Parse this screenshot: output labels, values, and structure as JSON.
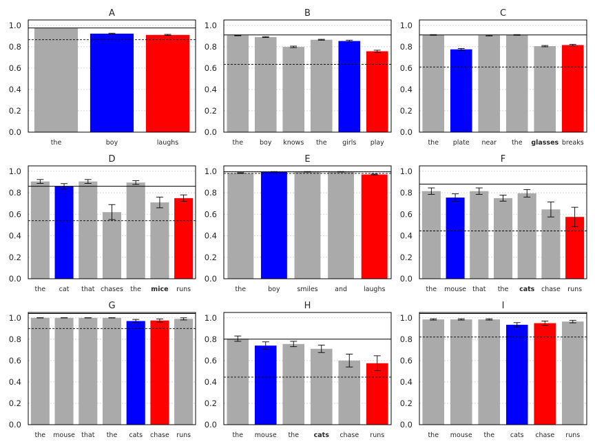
{
  "figure": {
    "background": "#ffffff"
  },
  "style": {
    "gray": "#aaaaaa",
    "blue": "#0000ff",
    "red": "#ff0000",
    "ref_line": "#000000"
  },
  "chart_data": [
    {
      "panel": "A",
      "type": "bar",
      "title": "A",
      "categories": [
        "the",
        "boy",
        "laughs"
      ],
      "bold": [],
      "values": [
        0.975,
        0.922,
        0.91
      ],
      "errors": [
        0,
        0.004,
        0.005
      ],
      "colors": [
        "gray",
        "blue",
        "red"
      ],
      "solid_line": 0.975,
      "dashed_line": 0.865,
      "ylim": [
        0,
        1.05
      ],
      "yticks": [
        "0.0",
        "0.2",
        "0.4",
        "0.6",
        "0.8",
        "1.0"
      ],
      "grid": true
    },
    {
      "panel": "B",
      "type": "bar",
      "title": "B",
      "categories": [
        "the",
        "boy",
        "knows",
        "the",
        "girls",
        "play"
      ],
      "bold": [],
      "values": [
        0.905,
        0.89,
        0.798,
        0.865,
        0.853,
        0.757
      ],
      "errors": [
        0.003,
        0.004,
        0.007,
        0.004,
        0.008,
        0.01
      ],
      "colors": [
        "gray",
        "gray",
        "gray",
        "gray",
        "blue",
        "red"
      ],
      "solid_line": 0.91,
      "dashed_line": 0.635,
      "ylim": [
        0,
        1.05
      ],
      "yticks": [
        "0.0",
        "0.2",
        "0.4",
        "0.6",
        "0.8",
        "1.0"
      ],
      "grid": true
    },
    {
      "panel": "C",
      "type": "bar",
      "title": "C",
      "categories": [
        "the",
        "plate",
        "near",
        "the",
        "glasses",
        "breaks"
      ],
      "bold": [
        "glasses"
      ],
      "values": [
        0.91,
        0.775,
        0.905,
        0.91,
        0.805,
        0.815
      ],
      "errors": [
        0.003,
        0.008,
        0.004,
        0.003,
        0.006,
        0.007
      ],
      "colors": [
        "gray",
        "blue",
        "gray",
        "gray",
        "gray",
        "red"
      ],
      "solid_line": 0.91,
      "dashed_line": 0.61,
      "ylim": [
        0,
        1.05
      ],
      "yticks": [
        "0.0",
        "0.2",
        "0.4",
        "0.6",
        "0.8",
        "1.0"
      ],
      "grid": true
    },
    {
      "panel": "D",
      "type": "bar",
      "title": "D",
      "categories": [
        "the",
        "cat",
        "that",
        "chases",
        "the",
        "mice",
        "runs"
      ],
      "bold": [
        "mice"
      ],
      "values": [
        0.905,
        0.86,
        0.905,
        0.62,
        0.895,
        0.71,
        0.75
      ],
      "errors": [
        0.018,
        0.025,
        0.018,
        0.07,
        0.018,
        0.05,
        0.03
      ],
      "colors": [
        "gray",
        "blue",
        "gray",
        "gray",
        "gray",
        "gray",
        "red"
      ],
      "solid_line": 0.86,
      "dashed_line": 0.54,
      "ylim": [
        0,
        1.05
      ],
      "yticks": [
        "0.0",
        "0.2",
        "0.4",
        "0.6",
        "0.8",
        "1.0"
      ],
      "grid": true
    },
    {
      "panel": "E",
      "type": "bar",
      "title": "E",
      "categories": [
        "the",
        "boy",
        "smiles",
        "and",
        "laughs"
      ],
      "bold": [],
      "values": [
        0.983,
        0.995,
        0.995,
        0.995,
        0.97
      ],
      "errors": [
        0.003,
        0.002,
        0.002,
        0.002,
        0.004
      ],
      "colors": [
        "gray",
        "blue",
        "gray",
        "gray",
        "red"
      ],
      "solid_line": 0.995,
      "dashed_line": 0.98,
      "ylim": [
        0,
        1.05
      ],
      "yticks": [
        "0.0",
        "0.2",
        "0.4",
        "0.6",
        "0.8",
        "1.0"
      ],
      "grid": true
    },
    {
      "panel": "F",
      "type": "bar",
      "title": "F",
      "categories": [
        "the",
        "mouse",
        "that",
        "the",
        "cats",
        "chase",
        "runs"
      ],
      "bold": [
        "cats"
      ],
      "values": [
        0.815,
        0.755,
        0.815,
        0.75,
        0.795,
        0.645,
        0.575
      ],
      "errors": [
        0.03,
        0.035,
        0.03,
        0.028,
        0.035,
        0.07,
        0.09
      ],
      "colors": [
        "gray",
        "blue",
        "gray",
        "gray",
        "gray",
        "gray",
        "red"
      ],
      "solid_line": 0.88,
      "dashed_line": 0.445,
      "ylim": [
        0,
        1.05
      ],
      "yticks": [
        "0.0",
        "0.2",
        "0.4",
        "0.6",
        "0.8",
        "1.0"
      ],
      "grid": true
    },
    {
      "panel": "G",
      "type": "bar",
      "title": "G",
      "categories": [
        "the",
        "mouse",
        "that",
        "the",
        "cats",
        "chase",
        "runs"
      ],
      "bold": [],
      "values": [
        1.0,
        1.0,
        1.0,
        1.0,
        0.97,
        0.975,
        0.99
      ],
      "errors": [
        0.001,
        0.001,
        0.001,
        0.001,
        0.015,
        0.015,
        0.01
      ],
      "colors": [
        "gray",
        "gray",
        "gray",
        "gray",
        "blue",
        "red",
        "gray"
      ],
      "solid_line": 1.04,
      "dashed_line": 0.9,
      "ylim": [
        0,
        1.05
      ],
      "yticks": [
        "0.0",
        "0.2",
        "0.4",
        "0.6",
        "0.8",
        "1.0"
      ],
      "grid": true
    },
    {
      "panel": "H",
      "type": "bar",
      "title": "H",
      "categories": [
        "the",
        "mouse",
        "the",
        "cats",
        "chase",
        "runs"
      ],
      "bold": [
        "cats"
      ],
      "values": [
        0.805,
        0.74,
        0.755,
        0.71,
        0.6,
        0.575
      ],
      "errors": [
        0.025,
        0.035,
        0.025,
        0.035,
        0.06,
        0.07
      ],
      "colors": [
        "gray",
        "blue",
        "gray",
        "gray",
        "gray",
        "red"
      ],
      "solid_line": 0.8,
      "dashed_line": 0.445,
      "ylim": [
        0,
        1.05
      ],
      "yticks": [
        "0.0",
        "0.2",
        "0.4",
        "0.6",
        "0.8",
        "1.0"
      ],
      "grid": true
    },
    {
      "panel": "I",
      "type": "bar",
      "title": "I",
      "categories": [
        "the",
        "mouse",
        "the",
        "cats",
        "chase",
        "runs"
      ],
      "bold": [],
      "values": [
        0.985,
        0.985,
        0.985,
        0.935,
        0.95,
        0.965
      ],
      "errors": [
        0.006,
        0.006,
        0.006,
        0.02,
        0.02,
        0.012
      ],
      "colors": [
        "gray",
        "gray",
        "gray",
        "blue",
        "red",
        "gray"
      ],
      "solid_line": 1.04,
      "dashed_line": 0.82,
      "ylim": [
        0,
        1.05
      ],
      "yticks": [
        "0.0",
        "0.2",
        "0.4",
        "0.6",
        "0.8",
        "1.0"
      ],
      "grid": true
    }
  ]
}
